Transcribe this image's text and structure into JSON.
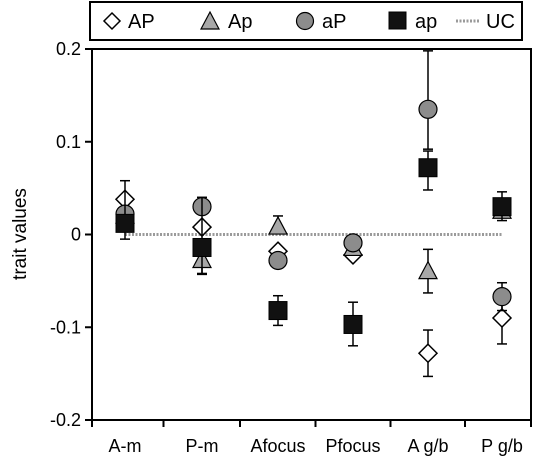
{
  "chart_data": {
    "type": "scatter",
    "title": "",
    "xlabel": "",
    "ylabel": "trait values",
    "ylim": [
      -0.2,
      0.2
    ],
    "y_ticks": [
      0.2,
      0.1,
      0,
      -0.1,
      -0.2
    ],
    "y_tick_labels": [
      "0.2",
      "0.1",
      "0",
      "-0.1",
      "-0.2"
    ],
    "categories": [
      "A-m",
      "P-m",
      "Afocus",
      "Pfocus",
      "A g/b",
      "P g/b"
    ],
    "grid": false,
    "legend_position": "top",
    "reference_line": {
      "name": "UC",
      "value": 0
    },
    "series": [
      {
        "name": "AP",
        "marker": "diamond-open",
        "color": "#ffffff",
        "stroke": "#000000",
        "points": [
          {
            "category": "A-m",
            "y": 0.038,
            "err_low": null,
            "err_high": null
          },
          {
            "category": "P-m",
            "y": 0.008,
            "err_low": null,
            "err_high": null
          },
          {
            "category": "Afocus",
            "y": -0.018,
            "err_low": null,
            "err_high": null
          },
          {
            "category": "Pfocus",
            "y": -0.022,
            "err_low": null,
            "err_high": null
          },
          {
            "category": "A g/b",
            "y": -0.128,
            "err_low": -0.153,
            "err_high": -0.103
          },
          {
            "category": "P g/b",
            "y": -0.09,
            "err_low": -0.118,
            "err_high": -0.062
          }
        ]
      },
      {
        "name": "Ap",
        "marker": "triangle",
        "color": "#a8a8a8",
        "stroke": "#000000",
        "points": [
          {
            "category": "A-m",
            "y": 0.02,
            "err_low": null,
            "err_high": null
          },
          {
            "category": "P-m",
            "y": -0.028,
            "err_low": -0.042,
            "err_high": null
          },
          {
            "category": "Afocus",
            "y": 0.008,
            "err_low": null,
            "err_high": 0.02
          },
          {
            "category": "Pfocus",
            "y": -0.015,
            "err_low": null,
            "err_high": null
          },
          {
            "category": "A g/b",
            "y": -0.04,
            "err_low": -0.063,
            "err_high": -0.016
          },
          {
            "category": "P g/b",
            "y": 0.025,
            "err_low": null,
            "err_high": null
          }
        ]
      },
      {
        "name": "aP",
        "marker": "circle",
        "color": "#8c8c8c",
        "stroke": "#000000",
        "points": [
          {
            "category": "A-m",
            "y": 0.022,
            "err_low": null,
            "err_high": null
          },
          {
            "category": "P-m",
            "y": 0.03,
            "err_low": null,
            "err_high": 0.04
          },
          {
            "category": "Afocus",
            "y": -0.028,
            "err_low": null,
            "err_high": null
          },
          {
            "category": "Pfocus",
            "y": -0.009,
            "err_low": null,
            "err_high": null
          },
          {
            "category": "A g/b",
            "y": 0.135,
            "err_low": 0.092,
            "err_high": 0.198
          },
          {
            "category": "P g/b",
            "y": -0.067,
            "err_low": -0.082,
            "err_high": -0.052
          }
        ]
      },
      {
        "name": "ap",
        "marker": "square",
        "color": "#111111",
        "stroke": "#000000",
        "points": [
          {
            "category": "A-m",
            "y": 0.012,
            "err_low": -0.005,
            "err_high": 0.058
          },
          {
            "category": "P-m",
            "y": -0.014,
            "err_low": -0.043,
            "err_high": 0.04
          },
          {
            "category": "Afocus",
            "y": -0.082,
            "err_low": -0.098,
            "err_high": -0.066
          },
          {
            "category": "Pfocus",
            "y": -0.097,
            "err_low": -0.12,
            "err_high": -0.073
          },
          {
            "category": "A g/b",
            "y": 0.072,
            "err_low": 0.048,
            "err_high": 0.09
          },
          {
            "category": "P g/b",
            "y": 0.03,
            "err_low": 0.015,
            "err_high": 0.046
          }
        ]
      }
    ]
  }
}
